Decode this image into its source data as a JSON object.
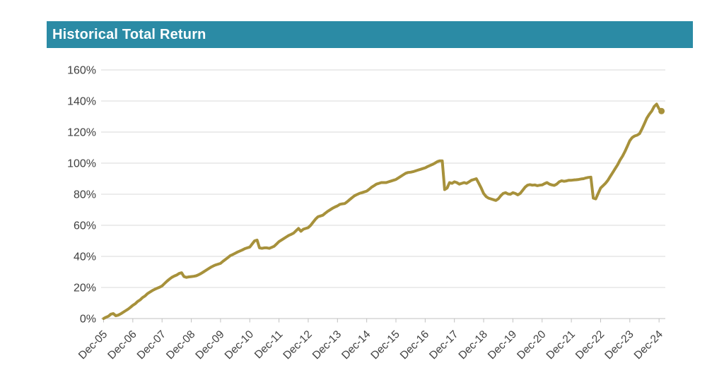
{
  "header": {
    "title": "Historical Total Return"
  },
  "colors": {
    "header_bg": "#2B8BA5",
    "header_text": "#FFFFFF",
    "line": "#A7913B",
    "grid": "#D9D9D9",
    "axis": "#C0C0C0",
    "label_text": "#404040",
    "background": "#FFFFFF"
  },
  "chart_data": {
    "type": "line",
    "title": "Historical Total Return",
    "xlabel": "",
    "ylabel": "",
    "legend": "none",
    "grid": "horizontal-only",
    "ylim": [
      0,
      160
    ],
    "y_tick_labels": [
      "0%",
      "20%",
      "40%",
      "60%",
      "80%",
      "100%",
      "120%",
      "140%",
      "160%"
    ],
    "y_tick_values": [
      0,
      20,
      40,
      60,
      80,
      100,
      120,
      140,
      160
    ],
    "x_tick_labels": [
      "Dec-05",
      "Dec-06",
      "Dec-07",
      "Dec-08",
      "Dec-09",
      "Dec-10",
      "Dec-11",
      "Dec-12",
      "Dec-13",
      "Dec-14",
      "Dec-15",
      "Dec-16",
      "Dec-17",
      "Dec-18",
      "Dec-19",
      "Dec-20",
      "Dec-21",
      "Dec-22",
      "Dec-23",
      "Dec-24"
    ],
    "x_tick_months": [
      0,
      12,
      24,
      36,
      48,
      60,
      72,
      84,
      96,
      108,
      120,
      132,
      144,
      156,
      168,
      180,
      192,
      204,
      216,
      228
    ],
    "x_unit": "months since Dec-2005",
    "y_unit": "percent total return",
    "end_marker": true,
    "series": [
      {
        "name": "Historical Total Return",
        "color": "#A7913B",
        "points": [
          [
            0,
            0
          ],
          [
            1,
            0.8
          ],
          [
            2,
            1.5
          ],
          [
            3,
            2.8
          ],
          [
            4,
            3.2
          ],
          [
            5,
            1.8
          ],
          [
            6,
            2.2
          ],
          [
            7,
            3
          ],
          [
            8,
            4
          ],
          [
            9,
            5
          ],
          [
            10,
            6
          ],
          [
            11,
            7.2
          ],
          [
            12,
            8.5
          ],
          [
            13,
            9.5
          ],
          [
            14,
            11
          ],
          [
            15,
            12
          ],
          [
            16,
            13.5
          ],
          [
            17,
            14.5
          ],
          [
            18,
            16
          ],
          [
            19,
            17
          ],
          [
            20,
            18
          ],
          [
            21,
            18.8
          ],
          [
            22,
            19.5
          ],
          [
            23,
            20.2
          ],
          [
            24,
            21
          ],
          [
            25,
            22.5
          ],
          [
            26,
            24
          ],
          [
            27,
            25.3
          ],
          [
            28,
            26.5
          ],
          [
            29,
            27.3
          ],
          [
            30,
            28
          ],
          [
            31,
            29
          ],
          [
            32,
            29.5
          ],
          [
            33,
            27
          ],
          [
            34,
            26.5
          ],
          [
            35,
            26.8
          ],
          [
            36,
            27
          ],
          [
            37,
            27.2
          ],
          [
            38,
            27.5
          ],
          [
            39,
            28.2
          ],
          [
            40,
            29
          ],
          [
            41,
            30
          ],
          [
            42,
            31
          ],
          [
            43,
            32
          ],
          [
            44,
            33
          ],
          [
            45,
            33.8
          ],
          [
            46,
            34.5
          ],
          [
            47,
            35
          ],
          [
            48,
            35.5
          ],
          [
            49,
            36.8
          ],
          [
            50,
            38
          ],
          [
            51,
            39.2
          ],
          [
            52,
            40.5
          ],
          [
            53,
            41.2
          ],
          [
            54,
            42
          ],
          [
            55,
            42.8
          ],
          [
            56,
            43.5
          ],
          [
            57,
            44.2
          ],
          [
            58,
            45
          ],
          [
            59,
            45.5
          ],
          [
            60,
            46
          ],
          [
            61,
            48
          ],
          [
            62,
            50
          ],
          [
            63,
            50.5
          ],
          [
            64,
            45.5
          ],
          [
            65,
            45.2
          ],
          [
            66,
            45.5
          ],
          [
            67,
            45.5
          ],
          [
            68,
            45.2
          ],
          [
            69,
            45.8
          ],
          [
            70,
            46.5
          ],
          [
            71,
            48
          ],
          [
            72,
            49.5
          ],
          [
            73,
            50.5
          ],
          [
            74,
            51.5
          ],
          [
            75,
            52.5
          ],
          [
            76,
            53.5
          ],
          [
            77,
            54.2
          ],
          [
            78,
            55
          ],
          [
            79,
            56.5
          ],
          [
            80,
            58
          ],
          [
            81,
            56.2
          ],
          [
            82,
            57.5
          ],
          [
            83,
            58
          ],
          [
            84,
            58.5
          ],
          [
            85,
            60
          ],
          [
            86,
            62
          ],
          [
            87,
            64
          ],
          [
            88,
            65.5
          ],
          [
            89,
            66
          ],
          [
            90,
            66.5
          ],
          [
            91,
            67.8
          ],
          [
            92,
            69
          ],
          [
            93,
            70
          ],
          [
            94,
            71
          ],
          [
            95,
            71.8
          ],
          [
            96,
            72.5
          ],
          [
            97,
            73.5
          ],
          [
            98,
            73.8
          ],
          [
            99,
            74
          ],
          [
            100,
            75.2
          ],
          [
            101,
            76.5
          ],
          [
            102,
            77.8
          ],
          [
            103,
            79
          ],
          [
            104,
            79.8
          ],
          [
            105,
            80.5
          ],
          [
            106,
            81
          ],
          [
            107,
            81.5
          ],
          [
            108,
            82
          ],
          [
            109,
            83.2
          ],
          [
            110,
            84.5
          ],
          [
            111,
            85.5
          ],
          [
            112,
            86.5
          ],
          [
            113,
            87
          ],
          [
            114,
            87.5
          ],
          [
            115,
            87.5
          ],
          [
            116,
            87.5
          ],
          [
            117,
            88
          ],
          [
            118,
            88.5
          ],
          [
            119,
            89
          ],
          [
            120,
            89.5
          ],
          [
            121,
            90.5
          ],
          [
            122,
            91.5
          ],
          [
            123,
            92.5
          ],
          [
            124,
            93.5
          ],
          [
            125,
            94
          ],
          [
            126,
            94.2
          ],
          [
            127,
            94.5
          ],
          [
            128,
            95
          ],
          [
            129,
            95.5
          ],
          [
            130,
            96
          ],
          [
            131,
            96.5
          ],
          [
            132,
            97
          ],
          [
            133,
            97.8
          ],
          [
            134,
            98.5
          ],
          [
            135,
            99.2
          ],
          [
            136,
            100
          ],
          [
            137,
            101
          ],
          [
            138,
            101.5
          ],
          [
            139,
            101.5
          ],
          [
            140,
            83
          ],
          [
            141,
            84
          ],
          [
            142,
            87.5
          ],
          [
            143,
            87
          ],
          [
            144,
            88
          ],
          [
            145,
            87.5
          ],
          [
            146,
            86.5
          ],
          [
            147,
            87
          ],
          [
            148,
            87.5
          ],
          [
            149,
            87
          ],
          [
            150,
            88
          ],
          [
            151,
            89
          ],
          [
            152,
            89.5
          ],
          [
            153,
            90
          ],
          [
            154,
            87
          ],
          [
            155,
            84
          ],
          [
            156,
            80.5
          ],
          [
            157,
            78.5
          ],
          [
            158,
            77.5
          ],
          [
            159,
            77
          ],
          [
            160,
            76.5
          ],
          [
            161,
            76
          ],
          [
            162,
            77
          ],
          [
            163,
            79
          ],
          [
            164,
            80.5
          ],
          [
            165,
            81
          ],
          [
            166,
            80.2
          ],
          [
            167,
            80
          ],
          [
            168,
            81
          ],
          [
            169,
            80.5
          ],
          [
            170,
            79.6
          ],
          [
            171,
            80.5
          ],
          [
            172,
            82.5
          ],
          [
            173,
            84.5
          ],
          [
            174,
            85.8
          ],
          [
            175,
            86.2
          ],
          [
            176,
            85.8
          ],
          [
            177,
            86
          ],
          [
            178,
            85.5
          ],
          [
            179,
            85.8
          ],
          [
            180,
            86
          ],
          [
            181,
            86.8
          ],
          [
            182,
            87.5
          ],
          [
            183,
            86.5
          ],
          [
            184,
            86
          ],
          [
            185,
            85.7
          ],
          [
            186,
            86.5
          ],
          [
            187,
            88
          ],
          [
            188,
            88.7
          ],
          [
            189,
            88.3
          ],
          [
            190,
            88.6
          ],
          [
            191,
            89
          ],
          [
            192,
            89
          ],
          [
            193,
            89.2
          ],
          [
            194,
            89.3
          ],
          [
            195,
            89.5
          ],
          [
            196,
            89.8
          ],
          [
            197,
            90
          ],
          [
            198,
            90.5
          ],
          [
            199,
            90.8
          ],
          [
            200,
            91
          ],
          [
            201,
            77.5
          ],
          [
            202,
            77
          ],
          [
            203,
            80.5
          ],
          [
            204,
            84
          ],
          [
            205,
            85.5
          ],
          [
            206,
            87
          ],
          [
            207,
            89
          ],
          [
            208,
            91.5
          ],
          [
            209,
            94
          ],
          [
            210,
            96.5
          ],
          [
            211,
            99
          ],
          [
            212,
            102
          ],
          [
            213,
            104.5
          ],
          [
            214,
            107.5
          ],
          [
            215,
            111
          ],
          [
            216,
            114.5
          ],
          [
            217,
            116.5
          ],
          [
            218,
            117.5
          ],
          [
            219,
            118
          ],
          [
            220,
            119
          ],
          [
            221,
            122
          ],
          [
            222,
            125.5
          ],
          [
            223,
            129
          ],
          [
            224,
            131.5
          ],
          [
            225,
            133.5
          ],
          [
            226,
            136.5
          ],
          [
            227,
            138
          ],
          [
            228,
            135
          ],
          [
            229,
            133.5
          ]
        ]
      }
    ]
  }
}
